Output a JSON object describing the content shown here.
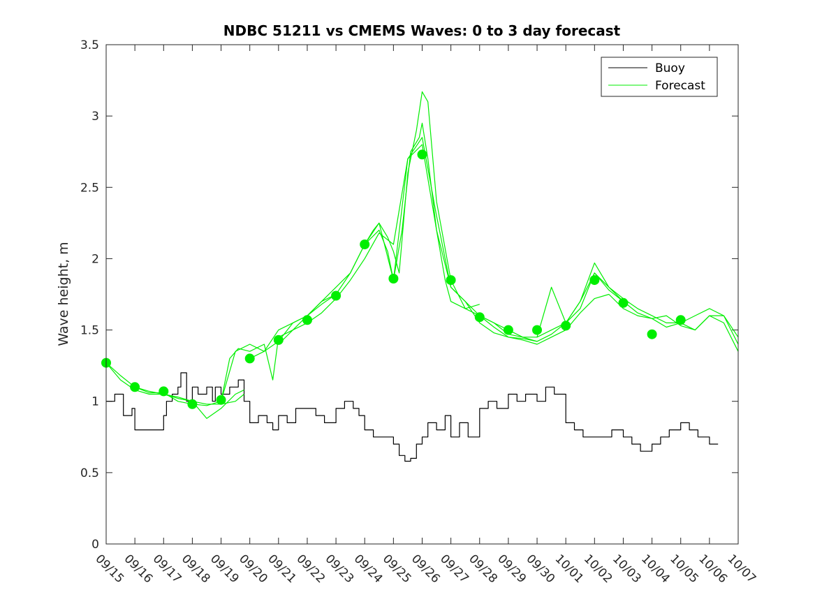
{
  "chart_data": {
    "type": "line",
    "title": "NDBC 51211 vs CMEMS Waves: 0 to 3 day forecast",
    "xlabel": "",
    "ylabel": "Wave height, m",
    "xlim": [
      0,
      22
    ],
    "ylim": [
      0,
      3.5
    ],
    "yticks": [
      0,
      0.5,
      1,
      1.5,
      2,
      2.5,
      3,
      3.5
    ],
    "ytick_labels": [
      "0",
      "0.5",
      "1",
      "1.5",
      "2",
      "2.5",
      "3",
      "3.5"
    ],
    "xtick_labels": [
      "09/15",
      "09/16",
      "09/17",
      "09/18",
      "09/19",
      "09/20",
      "09/21",
      "09/22",
      "09/23",
      "09/24",
      "09/25",
      "09/26",
      "09/27",
      "09/28",
      "09/29",
      "09/30",
      "10/01",
      "10/02",
      "10/03",
      "10/04",
      "10/05",
      "10/06",
      "10/07"
    ],
    "legend": {
      "position": "top-right",
      "entries": [
        {
          "label": "Buoy",
          "color": "#000000"
        },
        {
          "label": "Forecast",
          "color": "#00ee00"
        }
      ]
    },
    "colors": {
      "buoy": "#000000",
      "forecast": "#00ee00",
      "axis": "#262626"
    },
    "series": [
      {
        "name": "Buoy",
        "color": "#000000",
        "x": [
          0,
          0.3,
          0.6,
          0.9,
          1.0,
          1.5,
          2.0,
          2.1,
          2.3,
          2.5,
          2.6,
          2.8,
          3.0,
          3.2,
          3.5,
          3.7,
          3.8,
          4.0,
          4.3,
          4.6,
          4.8,
          5.0,
          5.3,
          5.6,
          5.8,
          6.0,
          6.3,
          6.6,
          7.0,
          7.3,
          7.6,
          8.0,
          8.3,
          8.6,
          8.8,
          9.0,
          9.3,
          9.6,
          10.0,
          10.2,
          10.4,
          10.6,
          10.8,
          11.0,
          11.2,
          11.5,
          11.8,
          12.0,
          12.3,
          12.6,
          13.0,
          13.3,
          13.6,
          14.0,
          14.3,
          14.6,
          15.0,
          15.3,
          15.6,
          16.0,
          16.3,
          16.6,
          17.0,
          17.3,
          17.6,
          18.0,
          18.3,
          18.6,
          19.0,
          19.3,
          19.6,
          20.0,
          20.3,
          20.6,
          21.0,
          21.3
        ],
        "values": [
          1.0,
          1.05,
          0.9,
          0.95,
          0.8,
          0.8,
          0.9,
          1.0,
          1.05,
          1.1,
          1.2,
          1.0,
          1.1,
          1.05,
          1.1,
          1.0,
          1.1,
          1.05,
          1.1,
          1.15,
          1.0,
          0.85,
          0.9,
          0.85,
          0.8,
          0.9,
          0.85,
          0.95,
          0.95,
          0.9,
          0.85,
          0.95,
          1.0,
          0.95,
          0.9,
          0.8,
          0.75,
          0.75,
          0.7,
          0.62,
          0.58,
          0.6,
          0.7,
          0.75,
          0.85,
          0.8,
          0.9,
          0.75,
          0.85,
          0.75,
          0.95,
          1.0,
          0.95,
          1.05,
          1.0,
          1.05,
          1.0,
          1.1,
          1.05,
          0.85,
          0.8,
          0.75,
          0.75,
          0.75,
          0.8,
          0.75,
          0.7,
          0.65,
          0.7,
          0.75,
          0.8,
          0.85,
          0.8,
          0.75,
          0.7,
          0.7
        ]
      },
      {
        "name": "Forecast run 1",
        "color": "#00ee00",
        "x": [
          0,
          0.5,
          1,
          1.5,
          2,
          2.5,
          3,
          3.5,
          4,
          4.5,
          4.8
        ],
        "values": [
          1.27,
          1.18,
          1.1,
          1.07,
          1.05,
          1.02,
          1.0,
          0.98,
          0.98,
          1.0,
          1.05
        ]
      },
      {
        "name": "Forecast run 2",
        "color": "#00ee00",
        "x": [
          0,
          0.5,
          1,
          1.5,
          2,
          2.5,
          3,
          3.5,
          4,
          4.5,
          4.8
        ],
        "values": [
          1.27,
          1.15,
          1.08,
          1.05,
          1.05,
          1.03,
          1.0,
          0.88,
          0.95,
          1.05,
          1.08
        ]
      },
      {
        "name": "Forecast run 3",
        "color": "#00ee00",
        "x": [
          1,
          1.5,
          2,
          2.5,
          3,
          3.5,
          4,
          4.5,
          5,
          5.5,
          6,
          6.5,
          7,
          7.5,
          8
        ],
        "values": [
          1.1,
          1.06,
          1.06,
          1.0,
          0.98,
          0.97,
          1.0,
          1.35,
          1.4,
          1.35,
          1.5,
          1.55,
          1.6,
          1.7,
          1.75
        ]
      },
      {
        "name": "Forecast run 4",
        "color": "#00ee00",
        "x": [
          4,
          4.3,
          4.6,
          5,
          5.5,
          5.8,
          6,
          6.5,
          7,
          7.5,
          8,
          8.5,
          9,
          9.5,
          9.8,
          10,
          10.3,
          10.6,
          10.9,
          11,
          11.2,
          11.5,
          11.8,
          12,
          12.5,
          13
        ],
        "values": [
          1.0,
          1.3,
          1.37,
          1.35,
          1.4,
          1.15,
          1.45,
          1.5,
          1.6,
          1.7,
          1.8,
          1.9,
          2.1,
          2.2,
          2.05,
          1.85,
          2.2,
          2.75,
          2.85,
          2.95,
          2.7,
          2.2,
          1.85,
          1.7,
          1.65,
          1.68
        ]
      },
      {
        "name": "Forecast run 5",
        "color": "#00ee00",
        "x": [
          5,
          5.5,
          6,
          6.5,
          7,
          7.5,
          8,
          8.5,
          9,
          9.3,
          9.5,
          9.8,
          10,
          10.2,
          10.5,
          10.8,
          11,
          11.2,
          11.5,
          12,
          12.5,
          13,
          13.5,
          14,
          14.5,
          15
        ],
        "values": [
          1.3,
          1.35,
          1.42,
          1.55,
          1.6,
          1.68,
          1.75,
          1.9,
          2.1,
          2.2,
          2.25,
          2.15,
          2.05,
          1.9,
          2.6,
          2.9,
          3.17,
          3.1,
          2.4,
          1.85,
          1.65,
          1.6,
          1.55,
          1.47,
          1.45,
          1.42
        ]
      },
      {
        "name": "Forecast run 6",
        "color": "#00ee00",
        "x": [
          6,
          6.5,
          7,
          7.5,
          8,
          8.5,
          9,
          9.5,
          10,
          10.5,
          11,
          11.5,
          12,
          12.5,
          13,
          13.5,
          14,
          14.5,
          15,
          15.5,
          16,
          16.5,
          17,
          17.5,
          18
        ],
        "values": [
          1.4,
          1.5,
          1.55,
          1.62,
          1.72,
          1.85,
          2.0,
          2.18,
          2.1,
          2.7,
          2.8,
          2.2,
          1.8,
          1.7,
          1.55,
          1.48,
          1.45,
          1.44,
          1.42,
          1.47,
          1.55,
          1.7,
          1.9,
          1.8,
          1.7
        ]
      },
      {
        "name": "Forecast run 7",
        "color": "#00ee00",
        "x": [
          9,
          9.5,
          10,
          10.5,
          11,
          11.5,
          12,
          12.5,
          13,
          13.5,
          14,
          14.5,
          15,
          15.5,
          16,
          16.5,
          17,
          17.5,
          18,
          18.5,
          19,
          19.5,
          20,
          20.5,
          21,
          21.5,
          22
        ],
        "values": [
          2.1,
          2.25,
          1.85,
          2.7,
          2.85,
          2.3,
          1.8,
          1.7,
          1.6,
          1.55,
          1.5,
          1.45,
          1.45,
          1.8,
          1.55,
          1.7,
          1.97,
          1.8,
          1.72,
          1.65,
          1.6,
          1.55,
          1.55,
          1.6,
          1.65,
          1.6,
          1.45
        ]
      },
      {
        "name": "Forecast run 8",
        "color": "#00ee00",
        "x": [
          13,
          13.5,
          14,
          14.5,
          15,
          15.5,
          16,
          16.5,
          17,
          17.5,
          18,
          18.5,
          19,
          19.5,
          20,
          20.5,
          21,
          21.5,
          22
        ],
        "values": [
          1.6,
          1.52,
          1.45,
          1.43,
          1.4,
          1.45,
          1.5,
          1.62,
          1.72,
          1.75,
          1.65,
          1.6,
          1.58,
          1.52,
          1.55,
          1.5,
          1.6,
          1.55,
          1.35
        ]
      },
      {
        "name": "Forecast run 9",
        "color": "#00ee00",
        "x": [
          15,
          15.5,
          16,
          16.5,
          17,
          17.5,
          18,
          18.5,
          19,
          19.5,
          20,
          20.5,
          21,
          21.5,
          22
        ],
        "values": [
          1.45,
          1.5,
          1.55,
          1.65,
          1.9,
          1.78,
          1.7,
          1.62,
          1.58,
          1.6,
          1.53,
          1.5,
          1.6,
          1.6,
          1.4
        ]
      }
    ],
    "markers": {
      "name": "Forecast initial",
      "color": "#00ee00",
      "x": [
        0,
        1,
        2,
        3,
        4,
        5,
        6,
        7,
        8,
        9,
        10,
        11,
        12,
        13,
        14,
        15,
        16,
        17,
        18,
        19,
        20
      ],
      "values": [
        1.27,
        1.1,
        1.07,
        0.98,
        1.01,
        1.3,
        1.43,
        1.57,
        1.74,
        2.1,
        1.86,
        2.73,
        1.85,
        1.59,
        1.5,
        1.5,
        1.53,
        1.85,
        1.69,
        1.47,
        1.57
      ]
    }
  }
}
